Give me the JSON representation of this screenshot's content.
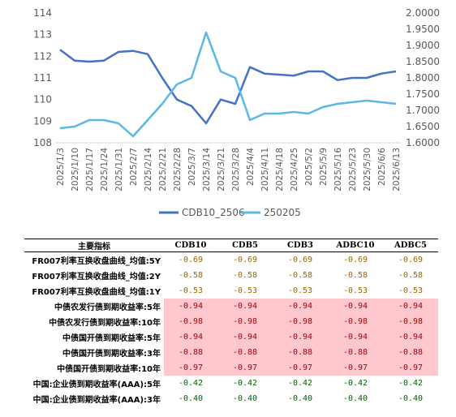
{
  "chart_data": {
    "type": "line",
    "x_labels": [
      "2025/1/3",
      "2025/1/10",
      "2025/1/17",
      "2025/1/24",
      "2025/1/31",
      "2025/2/7",
      "2025/2/14",
      "2025/2/21",
      "2025/2/28",
      "2025/3/7",
      "2025/3/14",
      "2025/3/21",
      "2025/3/28",
      "2025/4/4",
      "2025/4/11",
      "2025/4/18",
      "2025/4/25",
      "2025/5/2",
      "2025/5/9",
      "2025/5/16",
      "2025/5/23",
      "2025/5/30",
      "2025/6/6",
      "2025/6/13"
    ],
    "y_left": {
      "ticks": [
        "108",
        "109",
        "110",
        "111",
        "112",
        "113",
        "114"
      ],
      "ylim": [
        108,
        114
      ]
    },
    "y_right": {
      "ticks": [
        "1.6000",
        "1.6500",
        "1.7000",
        "1.7500",
        "1.8000",
        "1.8500",
        "1.9000",
        "1.9500",
        "2.0000"
      ],
      "ylim": [
        1.6,
        2.0
      ]
    },
    "grid": false,
    "legend_position": "bottom",
    "series": [
      {
        "name": "CDB10_2506",
        "axis": "left",
        "color": "#4472c4",
        "x_index": [
          0,
          1,
          2,
          3,
          4,
          5,
          6,
          7,
          8,
          9,
          10,
          11,
          12,
          13,
          14,
          15,
          16,
          17,
          18,
          19,
          20,
          21,
          22,
          23
        ],
        "values": [
          112.3,
          111.8,
          111.75,
          111.8,
          112.2,
          112.25,
          112.1,
          111.0,
          110.0,
          109.7,
          108.9,
          110.0,
          109.8,
          111.5,
          111.2,
          111.15,
          111.1,
          111.3,
          111.3,
          110.9,
          111.0,
          111.0,
          111.2,
          111.3
        ]
      },
      {
        "name": "250205",
        "axis": "right",
        "color": "#5bb8e6",
        "x_index": [
          0,
          1,
          2,
          3,
          4,
          5,
          6,
          7,
          8,
          9,
          10,
          11,
          12,
          13,
          14,
          15,
          16,
          17,
          18,
          19,
          20,
          21,
          22,
          23
        ],
        "values": [
          1.645,
          1.65,
          1.67,
          1.67,
          1.66,
          1.62,
          1.67,
          1.72,
          1.78,
          1.8,
          1.94,
          1.82,
          1.8,
          1.67,
          1.69,
          1.69,
          1.695,
          1.69,
          1.71,
          1.72,
          1.725,
          1.73,
          1.725,
          1.72
        ]
      }
    ]
  },
  "table": {
    "headers": [
      "主要指标",
      "CDB10",
      "CDB5",
      "CDB3",
      "ADBC10",
      "ADBC5"
    ],
    "rows": [
      {
        "name": "FR007利率互换收盘曲线_均值:5Y",
        "values": [
          "-0.69",
          "-0.69",
          "-0.69",
          "-0.69",
          "-0.69"
        ],
        "color": "gold",
        "highlight": false
      },
      {
        "name": "FR007利率互换收盘曲线_均值:2Y",
        "values": [
          "-0.58",
          "-0.58",
          "-0.58",
          "-0.58",
          "-0.58"
        ],
        "color": "gold",
        "highlight": false
      },
      {
        "name": "FR007利率互换收盘曲线_均值:1Y",
        "values": [
          "-0.53",
          "-0.53",
          "-0.53",
          "-0.53",
          "-0.53"
        ],
        "color": "gold",
        "highlight": false
      },
      {
        "name": "中债农发行债到期收益率:5年",
        "values": [
          "-0.94",
          "-0.94",
          "-0.94",
          "-0.94",
          "-0.94"
        ],
        "color": "red",
        "highlight": true
      },
      {
        "name": "中债农发行债到期收益率:10年",
        "values": [
          "-0.98",
          "-0.98",
          "-0.98",
          "-0.98",
          "-0.98"
        ],
        "color": "red",
        "highlight": true
      },
      {
        "name": "中债国开债到期收益率:5年",
        "values": [
          "-0.94",
          "-0.94",
          "-0.94",
          "-0.94",
          "-0.94"
        ],
        "color": "red",
        "highlight": true
      },
      {
        "name": "中债国开债到期收益率:3年",
        "values": [
          "-0.88",
          "-0.88",
          "-0.88",
          "-0.88",
          "-0.88"
        ],
        "color": "red",
        "highlight": true
      },
      {
        "name": "中债国开债到期收益率:10年",
        "values": [
          "-0.97",
          "-0.97",
          "-0.97",
          "-0.97",
          "-0.97"
        ],
        "color": "red",
        "highlight": true
      },
      {
        "name": "中国:企业债到期收益率(AAA):5年",
        "values": [
          "-0.42",
          "-0.42",
          "-0.42",
          "-0.42",
          "-0.42"
        ],
        "color": "green",
        "highlight": false
      },
      {
        "name": "中国:企业债到期收益率(AAA):3年",
        "values": [
          "-0.40",
          "-0.40",
          "-0.40",
          "-0.40",
          "-0.40"
        ],
        "color": "green",
        "highlight": false
      }
    ]
  }
}
